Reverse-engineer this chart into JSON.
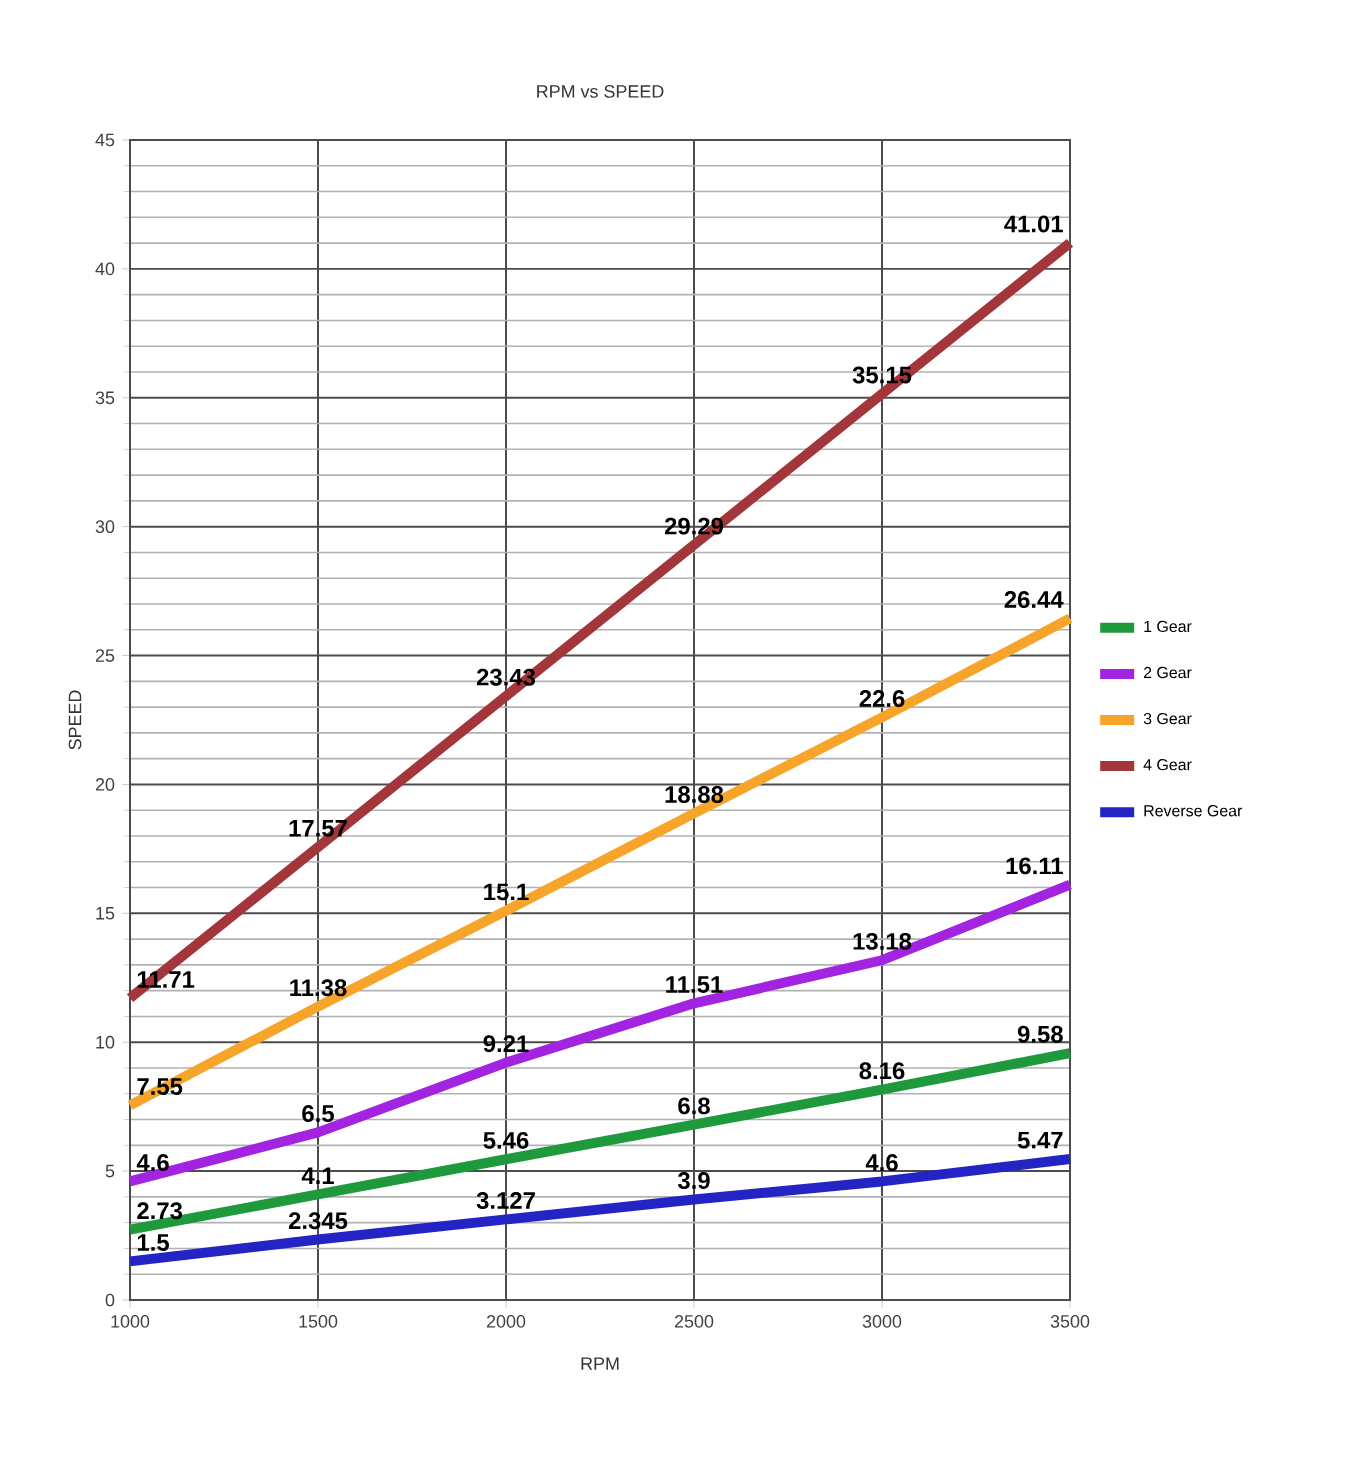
{
  "chart_data": {
    "type": "line",
    "title": "RPM vs SPEED",
    "xlabel": "RPM",
    "ylabel": "SPEED",
    "x": [
      1000,
      1500,
      2000,
      2500,
      3000,
      3500
    ],
    "series": [
      {
        "name": "1 Gear",
        "color": "#1e9a3c",
        "values": [
          2.73,
          4.1,
          5.46,
          6.8,
          8.16,
          9.58
        ]
      },
      {
        "name": "2 Gear",
        "color": "#a224e0",
        "values": [
          4.6,
          6.5,
          9.21,
          11.51,
          13.18,
          16.11
        ]
      },
      {
        "name": "3 Gear",
        "color": "#f6a52a",
        "values": [
          7.55,
          11.38,
          15.1,
          18.88,
          22.6,
          26.44
        ]
      },
      {
        "name": "4 Gear",
        "color": "#a3363a",
        "values": [
          11.71,
          17.57,
          23.43,
          29.29,
          35.15,
          41.01
        ]
      },
      {
        "name": "Reverse Gear",
        "color": "#2424c4",
        "values": [
          1.5,
          2.345,
          3.127,
          3.9,
          4.6,
          5.47
        ]
      }
    ],
    "xlim": [
      1000,
      3500
    ],
    "ylim": [
      0,
      45
    ],
    "xticks": [
      1000,
      1500,
      2000,
      2500,
      3000,
      3500
    ],
    "yticks": [
      0,
      5,
      10,
      15,
      20,
      25,
      30,
      35,
      40,
      45
    ],
    "grid": true,
    "legend": "right",
    "data_labels": true,
    "marker": "none",
    "line_style": "solid"
  }
}
